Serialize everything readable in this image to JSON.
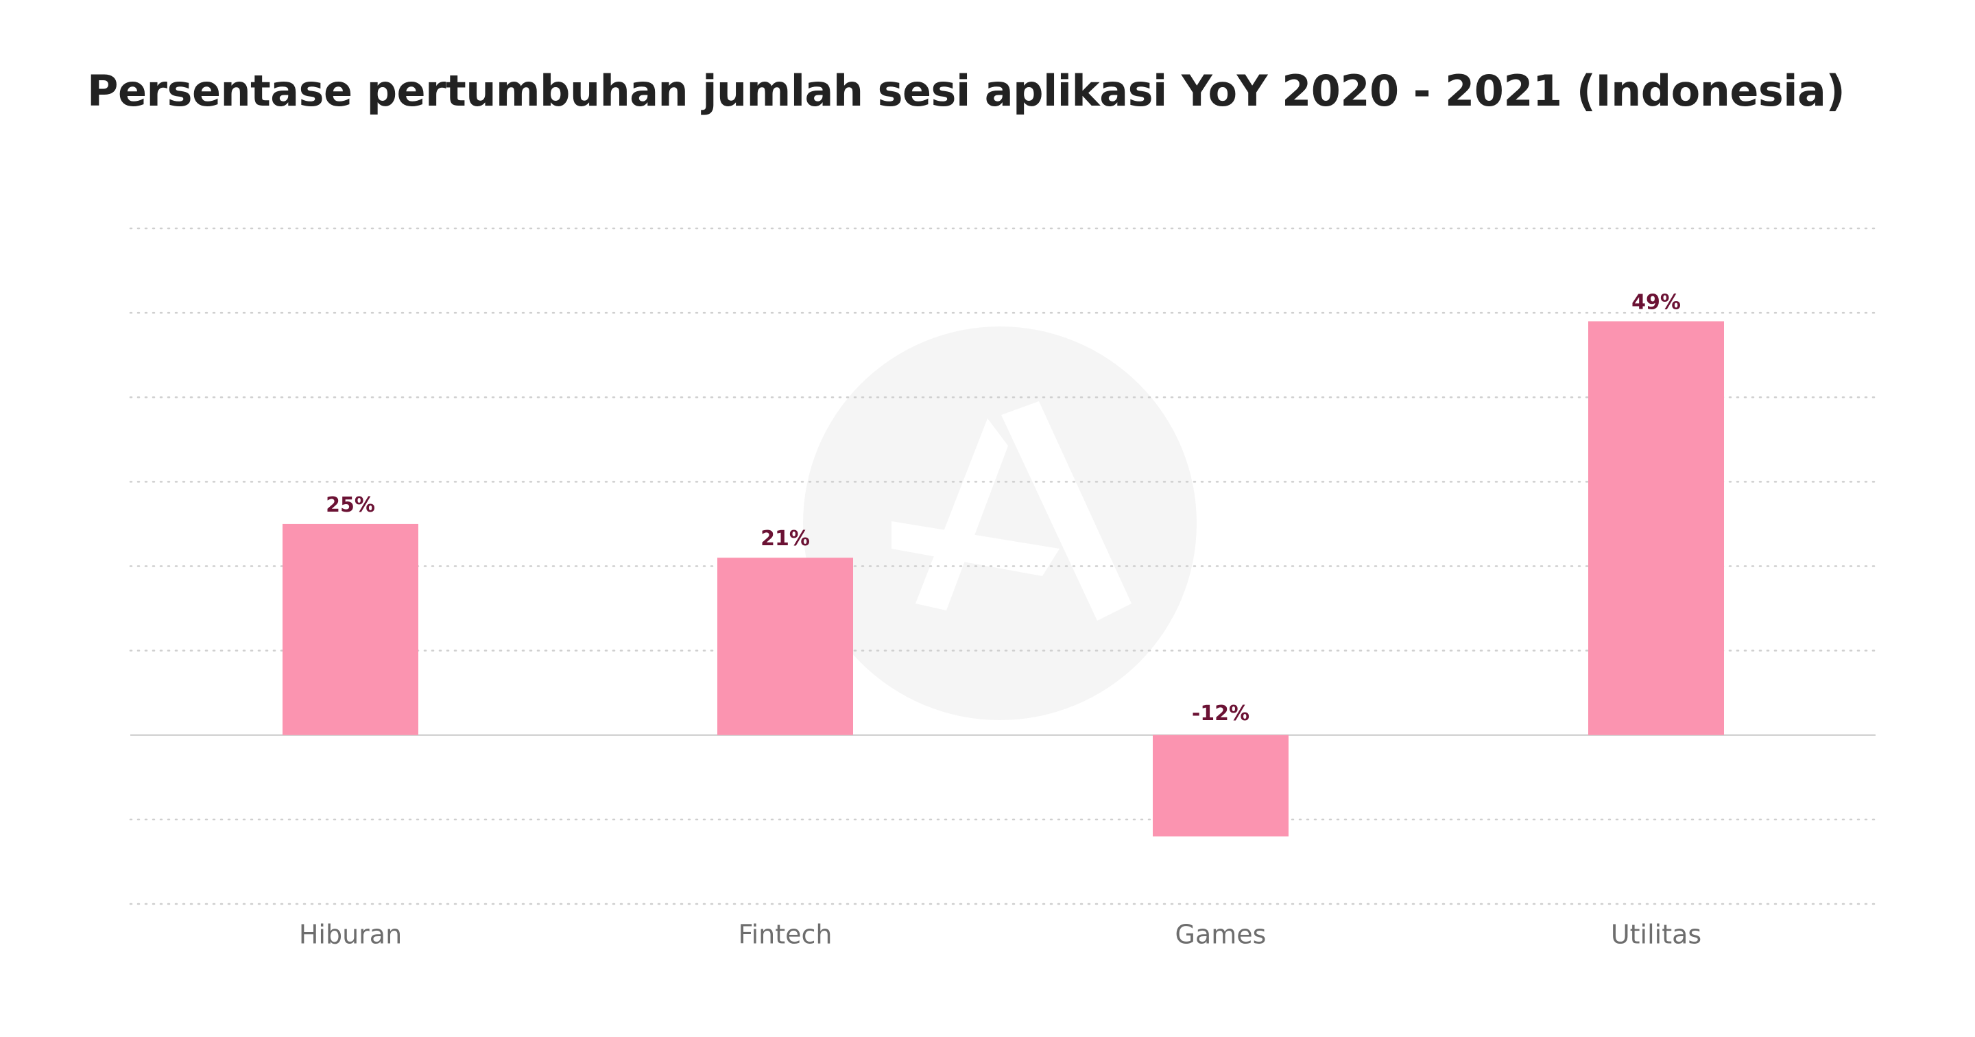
{
  "chart_data": {
    "type": "bar",
    "title": "Persentase pertumbuhan jumlah sesi aplikasi YoY 2020 - 2021 (Indonesia)",
    "categories": [
      "Hiburan",
      "Fintech",
      "Games",
      "Utilitas"
    ],
    "values": [
      25,
      21,
      -12,
      49
    ],
    "data_labels": [
      "25%",
      "21%",
      "-12%",
      "49%"
    ],
    "ylim": [
      -20,
      60
    ],
    "grid": true,
    "grid_style": "dotted",
    "legend": "none",
    "xlabel": "",
    "ylabel": ""
  },
  "colors": {
    "bar": "#fb94b0",
    "data_label": "#6b1234",
    "category_label": "#6d6d6d",
    "title": "#222222",
    "grid": "#cfcfcf",
    "baseline": "#d4d4d4",
    "watermark_circle": "#f5f5f5",
    "watermark_mark": "#ffffff"
  },
  "watermark": {
    "icon": "logo-mark-icon"
  }
}
